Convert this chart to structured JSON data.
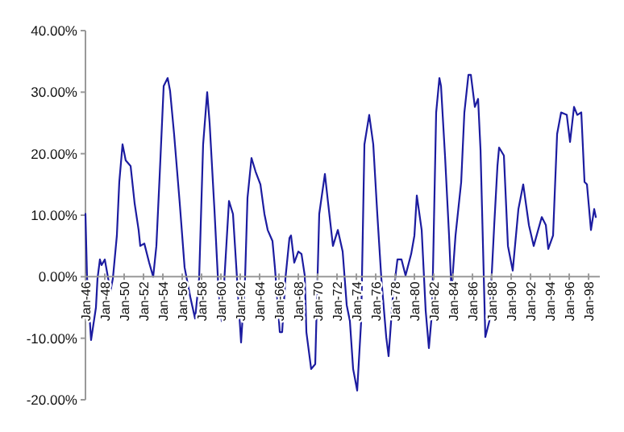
{
  "chart_data": {
    "type": "line",
    "grid": false,
    "marker": "none",
    "line_style": "solid",
    "x": [
      "1946-01",
      "1946-03",
      "1946-08",
      "1947-02",
      "1947-04",
      "1947-07",
      "1947-09",
      "1948-01",
      "1948-04",
      "1948-08",
      "1948-11",
      "1949-04",
      "1949-07",
      "1949-11",
      "1950-03",
      "1950-09",
      "1951-02",
      "1951-07",
      "1951-09",
      "1952-02",
      "1952-08",
      "1953-01",
      "1953-05",
      "1953-09",
      "1954-02",
      "1954-07",
      "1954-10",
      "1955-03",
      "1955-10",
      "1956-04",
      "1956-11",
      "1957-05",
      "1957-10",
      "1958-03",
      "1958-08",
      "1958-11",
      "1959-05",
      "1959-10",
      "1960-02",
      "1960-05",
      "1960-11",
      "1961-04",
      "1961-09",
      "1962-02",
      "1962-07",
      "1962-10",
      "1963-03",
      "1963-08",
      "1964-02",
      "1964-07",
      "1964-11",
      "1965-05",
      "1965-08",
      "1966-02",
      "1966-05",
      "1966-09",
      "1967-02",
      "1967-04",
      "1967-08",
      "1968-01",
      "1968-05",
      "1968-09",
      "1968-11",
      "1969-05",
      "1969-10",
      "1970-03",
      "1970-10",
      "1971-02",
      "1971-08",
      "1972-02",
      "1972-08",
      "1973-01",
      "1973-05",
      "1973-09",
      "1974-02",
      "1974-07",
      "1974-11",
      "1975-05",
      "1975-10",
      "1976-03",
      "1976-08",
      "1977-02",
      "1977-05",
      "1977-10",
      "1978-04",
      "1978-09",
      "1979-02",
      "1979-09",
      "1980-01",
      "1980-04",
      "1980-10",
      "1981-03",
      "1981-07",
      "1981-11",
      "1982-04",
      "1982-08",
      "1982-10",
      "1983-03",
      "1983-08",
      "1983-11",
      "1984-04",
      "1984-11",
      "1985-03",
      "1985-08",
      "1985-11",
      "1986-04",
      "1986-08",
      "1986-11",
      "1987-05",
      "1987-10",
      "1988-04",
      "1988-08",
      "1988-10",
      "1989-04",
      "1989-09",
      "1990-03",
      "1990-10",
      "1991-04",
      "1991-11",
      "1992-05",
      "1993-03",
      "1993-08",
      "1993-11",
      "1994-05",
      "1994-10",
      "1995-03",
      "1995-10",
      "1996-02",
      "1996-07",
      "1996-11",
      "1997-04",
      "1997-08",
      "1997-11",
      "1998-04",
      "1998-08",
      "1998-10"
    ],
    "series": [
      {
        "color": "#1c1ca0",
        "values": [
          10.2,
          0,
          -10.3,
          -5,
          -0.3,
          2.8,
          1.9,
          2.8,
          0.6,
          -2.4,
          -0.3,
          6.7,
          15.4,
          21.5,
          18.9,
          18,
          11.9,
          7.6,
          5,
          5.4,
          2.3,
          0,
          5,
          16.3,
          31,
          32.3,
          30.2,
          23.2,
          11.9,
          1.5,
          -3.3,
          -6.8,
          -0.3,
          21.5,
          30,
          25,
          11,
          -2,
          -7.2,
          -1.1,
          12.3,
          10.2,
          -0.3,
          -10.7,
          -0.3,
          12.8,
          19.3,
          17.1,
          15,
          10.2,
          7.6,
          5.8,
          1.5,
          -9,
          -9,
          -0.3,
          6.3,
          6.7,
          2.3,
          4.1,
          3.7,
          0.2,
          -9,
          -15,
          -14.2,
          10.2,
          16.7,
          11.9,
          5,
          7.6,
          4.1,
          -4.6,
          -7.2,
          -15,
          -18.5,
          -7.2,
          21.5,
          26.3,
          21.5,
          10.2,
          -0.3,
          -9.8,
          -12.9,
          -3.7,
          2.8,
          2.8,
          0.2,
          3.7,
          6.7,
          13.2,
          7.6,
          -5.5,
          -11.6,
          -5.5,
          26.7,
          32.3,
          31,
          19.7,
          6.7,
          -2.4,
          6.7,
          15.4,
          26.7,
          32.8,
          32.8,
          27.6,
          28.9,
          20.6,
          -9.8,
          -7.2,
          8.4,
          18,
          21,
          19.7,
          5,
          1,
          11,
          15,
          8.4,
          5,
          9.7,
          8.4,
          4.5,
          6.7,
          23.2,
          26.7,
          26.3,
          21.9,
          27.6,
          26.3,
          26.7,
          15.4,
          15,
          7.6,
          11,
          9.7
        ]
      }
    ],
    "xlim": [
      "1946-01",
      "1999-03"
    ],
    "xticks": [
      {
        "value": "1946-01",
        "label": "Jan-46"
      },
      {
        "value": "1948-01",
        "label": "Jan-48"
      },
      {
        "value": "1950-01",
        "label": "Jan-50"
      },
      {
        "value": "1952-01",
        "label": "Jan-52"
      },
      {
        "value": "1954-01",
        "label": "Jan-54"
      },
      {
        "value": "1956-01",
        "label": "Jan-56"
      },
      {
        "value": "1958-01",
        "label": "Jan-58"
      },
      {
        "value": "1960-01",
        "label": "Jan-60"
      },
      {
        "value": "1962-01",
        "label": "Jan-62"
      },
      {
        "value": "1964-01",
        "label": "Jan-64"
      },
      {
        "value": "1966-01",
        "label": "Jan-66"
      },
      {
        "value": "1968-01",
        "label": "Jan-68"
      },
      {
        "value": "1970-01",
        "label": "Jan-70"
      },
      {
        "value": "1972-01",
        "label": "Jan-72"
      },
      {
        "value": "1974-01",
        "label": "Jan-74"
      },
      {
        "value": "1976-01",
        "label": "Jan-76"
      },
      {
        "value": "1978-01",
        "label": "Jan-78"
      },
      {
        "value": "1980-01",
        "label": "Jan-80"
      },
      {
        "value": "1982-01",
        "label": "Jan-82"
      },
      {
        "value": "1984-01",
        "label": "Jan-84"
      },
      {
        "value": "1986-01",
        "label": "Jan-86"
      },
      {
        "value": "1988-01",
        "label": "Jan-88"
      },
      {
        "value": "1990-01",
        "label": "Jan-90"
      },
      {
        "value": "1992-01",
        "label": "Jan-92"
      },
      {
        "value": "1994-01",
        "label": "Jan-94"
      },
      {
        "value": "1996-01",
        "label": "Jan-96"
      },
      {
        "value": "1998-01",
        "label": "Jan-98"
      }
    ],
    "ylim": [
      -20,
      40
    ],
    "yticks": [
      {
        "value": -20,
        "label": "-20.00%"
      },
      {
        "value": -10,
        "label": "-10.00%"
      },
      {
        "value": 0,
        "label": "0.00%"
      },
      {
        "value": 10,
        "label": "10.00%"
      },
      {
        "value": 20,
        "label": "20.00%"
      },
      {
        "value": 30,
        "label": "30.00%"
      },
      {
        "value": 40,
        "label": "40.00%"
      }
    ]
  }
}
